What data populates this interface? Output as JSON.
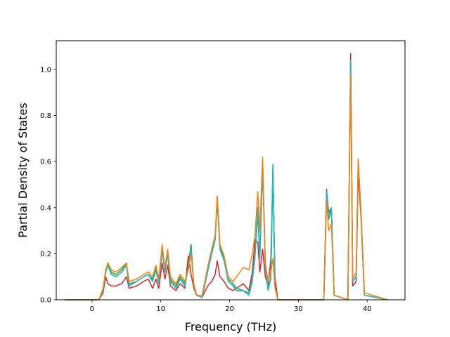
{
  "chart_data": {
    "type": "line",
    "title": "",
    "xlabel": "Frequency (THz)",
    "ylabel": "Partial Density of States",
    "xlim": [
      -5.2,
      45.5
    ],
    "ylim": [
      0,
      1.125
    ],
    "xticks": [
      0,
      10,
      20,
      30,
      40
    ],
    "yticks": [
      0.0,
      0.2,
      0.4,
      0.6,
      0.8,
      1.0
    ],
    "xtick_labels": [
      "0",
      "10",
      "20",
      "30",
      "40"
    ],
    "ytick_labels": [
      "0.0",
      "0.2",
      "0.4",
      "0.6",
      "0.8",
      "1.0"
    ],
    "grid": false,
    "legend": "none",
    "series": [
      {
        "color": "#1f77b4",
        "points": [
          [
            -4,
            0
          ],
          [
            1,
            0
          ],
          [
            1.6,
            0.04
          ],
          [
            2,
            0.12
          ],
          [
            2.3,
            0.16
          ],
          [
            2.8,
            0.11
          ],
          [
            3.5,
            0.1
          ],
          [
            4.3,
            0.12
          ],
          [
            5,
            0.15
          ],
          [
            5.4,
            0.06
          ],
          [
            6.5,
            0.08
          ],
          [
            7.5,
            0.1
          ],
          [
            8.2,
            0.11
          ],
          [
            8.8,
            0.08
          ],
          [
            9.3,
            0.13
          ],
          [
            9.7,
            0.07
          ],
          [
            10.2,
            0.22
          ],
          [
            10.6,
            0.12
          ],
          [
            11,
            0.2
          ],
          [
            11.4,
            0.08
          ],
          [
            12.2,
            0.05
          ],
          [
            12.8,
            0.09
          ],
          [
            13.5,
            0.06
          ],
          [
            14,
            0.15
          ],
          [
            14.4,
            0.24
          ],
          [
            14.8,
            0.06
          ],
          [
            15.2,
            0.02
          ],
          [
            16,
            0.01
          ],
          [
            16.8,
            0.12
          ],
          [
            17.4,
            0.2
          ],
          [
            17.9,
            0.26
          ],
          [
            18.2,
            0.44
          ],
          [
            18.6,
            0.22
          ],
          [
            19.2,
            0.17
          ],
          [
            19.8,
            0.08
          ],
          [
            20.5,
            0.06
          ],
          [
            21,
            0.04
          ],
          [
            22,
            0.04
          ],
          [
            22.8,
            0.02
          ],
          [
            23.3,
            0.08
          ],
          [
            23.7,
            0.19
          ],
          [
            24.1,
            0.38
          ],
          [
            24.4,
            0.18
          ],
          [
            24.8,
            0.58
          ],
          [
            25.2,
            0.14
          ],
          [
            25.6,
            0.04
          ],
          [
            26,
            0.1
          ],
          [
            26.3,
            0.58
          ],
          [
            26.6,
            0.06
          ],
          [
            27,
            0
          ],
          [
            33.7,
            0
          ],
          [
            34.1,
            0.47
          ],
          [
            34.4,
            0.36
          ],
          [
            34.8,
            0.4
          ],
          [
            35.2,
            0.02
          ],
          [
            37.2,
            0
          ],
          [
            37.6,
            1.06
          ],
          [
            37.9,
            0.08
          ],
          [
            38.4,
            0.1
          ],
          [
            38.7,
            0.6
          ],
          [
            39.1,
            0.38
          ],
          [
            39.6,
            0.02
          ],
          [
            43,
            0
          ]
        ]
      },
      {
        "color": "#d62728",
        "points": [
          [
            -4,
            0
          ],
          [
            1,
            0
          ],
          [
            1.6,
            0.03
          ],
          [
            2,
            0.1
          ],
          [
            2.3,
            0.07
          ],
          [
            2.8,
            0.06
          ],
          [
            3.5,
            0.06
          ],
          [
            4.3,
            0.07
          ],
          [
            5,
            0.1
          ],
          [
            5.4,
            0.05
          ],
          [
            6.5,
            0.06
          ],
          [
            7.5,
            0.08
          ],
          [
            8.2,
            0.09
          ],
          [
            8.8,
            0.05
          ],
          [
            9.3,
            0.09
          ],
          [
            9.7,
            0.05
          ],
          [
            10.2,
            0.16
          ],
          [
            10.6,
            0.09
          ],
          [
            11,
            0.15
          ],
          [
            11.4,
            0.06
          ],
          [
            12.2,
            0.04
          ],
          [
            12.8,
            0.07
          ],
          [
            13.5,
            0.05
          ],
          [
            14,
            0.19
          ],
          [
            14.4,
            0.11
          ],
          [
            14.8,
            0.05
          ],
          [
            15.2,
            0.02
          ],
          [
            16,
            0.01
          ],
          [
            16.8,
            0.06
          ],
          [
            17.4,
            0.08
          ],
          [
            17.9,
            0.11
          ],
          [
            18.2,
            0.17
          ],
          [
            18.6,
            0.1
          ],
          [
            19.2,
            0.08
          ],
          [
            19.8,
            0.05
          ],
          [
            20.5,
            0.04
          ],
          [
            21,
            0.05
          ],
          [
            22,
            0.07
          ],
          [
            22.8,
            0.04
          ],
          [
            23.3,
            0.12
          ],
          [
            23.7,
            0.26
          ],
          [
            24.1,
            0.25
          ],
          [
            24.4,
            0.12
          ],
          [
            24.8,
            0.22
          ],
          [
            25.2,
            0.1
          ],
          [
            25.6,
            0.06
          ],
          [
            26,
            0.18
          ],
          [
            26.3,
            0.56
          ],
          [
            26.6,
            0.1
          ],
          [
            27,
            0
          ],
          [
            33.7,
            0
          ],
          [
            34.1,
            0.48
          ],
          [
            34.4,
            0.38
          ],
          [
            34.8,
            0.4
          ],
          [
            35.2,
            0.02
          ],
          [
            37.2,
            0
          ],
          [
            37.6,
            1.07
          ],
          [
            37.9,
            0.06
          ],
          [
            38.4,
            0.08
          ],
          [
            38.7,
            0.55
          ],
          [
            39.1,
            0.36
          ],
          [
            39.6,
            0.02
          ],
          [
            43,
            0
          ]
        ]
      },
      {
        "color": "#2ca02c",
        "points": [
          [
            -4,
            0
          ],
          [
            1,
            0
          ],
          [
            1.6,
            0.04
          ],
          [
            2,
            0.13
          ],
          [
            2.3,
            0.16
          ],
          [
            2.8,
            0.12
          ],
          [
            3.5,
            0.11
          ],
          [
            4.3,
            0.13
          ],
          [
            5,
            0.16
          ],
          [
            5.4,
            0.07
          ],
          [
            6.5,
            0.08
          ],
          [
            7.5,
            0.1
          ],
          [
            8.2,
            0.11
          ],
          [
            8.8,
            0.09
          ],
          [
            9.3,
            0.14
          ],
          [
            9.7,
            0.08
          ],
          [
            10.2,
            0.23
          ],
          [
            10.6,
            0.13
          ],
          [
            11,
            0.21
          ],
          [
            11.4,
            0.09
          ],
          [
            12.2,
            0.06
          ],
          [
            12.8,
            0.1
          ],
          [
            13.5,
            0.07
          ],
          [
            14,
            0.15
          ],
          [
            14.4,
            0.23
          ],
          [
            14.8,
            0.06
          ],
          [
            15.2,
            0.02
          ],
          [
            16,
            0.01
          ],
          [
            16.8,
            0.13
          ],
          [
            17.4,
            0.21
          ],
          [
            17.9,
            0.27
          ],
          [
            18.2,
            0.45
          ],
          [
            18.6,
            0.23
          ],
          [
            19.2,
            0.18
          ],
          [
            19.8,
            0.09
          ],
          [
            20.5,
            0.07
          ],
          [
            21,
            0.05
          ],
          [
            22,
            0.04
          ],
          [
            22.8,
            0.03
          ],
          [
            23.3,
            0.09
          ],
          [
            23.7,
            0.2
          ],
          [
            24.1,
            0.4
          ],
          [
            24.4,
            0.19
          ],
          [
            24.8,
            0.6
          ],
          [
            25.2,
            0.15
          ],
          [
            25.6,
            0.05
          ],
          [
            26,
            0.09
          ],
          [
            26.3,
            0.57
          ],
          [
            26.6,
            0.06
          ],
          [
            27,
            0
          ],
          [
            33.7,
            0
          ],
          [
            34.1,
            0.46
          ],
          [
            34.4,
            0.35
          ],
          [
            34.8,
            0.39
          ],
          [
            35.2,
            0.02
          ],
          [
            37.2,
            0
          ],
          [
            37.6,
            1.03
          ],
          [
            37.9,
            0.08
          ],
          [
            38.4,
            0.1
          ],
          [
            38.7,
            0.61
          ],
          [
            39.1,
            0.37
          ],
          [
            39.6,
            0.02
          ],
          [
            43,
            0
          ]
        ]
      },
      {
        "color": "#17becf",
        "points": [
          [
            -4,
            0
          ],
          [
            1,
            0
          ],
          [
            1.6,
            0.04
          ],
          [
            2,
            0.12
          ],
          [
            2.3,
            0.15
          ],
          [
            2.8,
            0.11
          ],
          [
            3.5,
            0.1
          ],
          [
            4.3,
            0.12
          ],
          [
            5,
            0.15
          ],
          [
            5.4,
            0.06
          ],
          [
            6.5,
            0.08
          ],
          [
            7.5,
            0.1
          ],
          [
            8.2,
            0.11
          ],
          [
            8.8,
            0.08
          ],
          [
            9.3,
            0.13
          ],
          [
            9.7,
            0.07
          ],
          [
            10.2,
            0.21
          ],
          [
            10.6,
            0.12
          ],
          [
            11,
            0.2
          ],
          [
            11.4,
            0.08
          ],
          [
            12.2,
            0.05
          ],
          [
            12.8,
            0.09
          ],
          [
            13.5,
            0.06
          ],
          [
            14,
            0.14
          ],
          [
            14.4,
            0.22
          ],
          [
            14.8,
            0.06
          ],
          [
            15.2,
            0.02
          ],
          [
            16,
            0.01
          ],
          [
            16.8,
            0.12
          ],
          [
            17.4,
            0.2
          ],
          [
            17.9,
            0.26
          ],
          [
            18.2,
            0.43
          ],
          [
            18.6,
            0.22
          ],
          [
            19.2,
            0.17
          ],
          [
            19.8,
            0.08
          ],
          [
            20.5,
            0.06
          ],
          [
            21,
            0.04
          ],
          [
            22,
            0.04
          ],
          [
            22.8,
            0.02
          ],
          [
            23.3,
            0.08
          ],
          [
            23.7,
            0.19
          ],
          [
            24.1,
            0.39
          ],
          [
            24.4,
            0.18
          ],
          [
            24.8,
            0.59
          ],
          [
            25.2,
            0.14
          ],
          [
            25.6,
            0.04
          ],
          [
            26,
            0.1
          ],
          [
            26.3,
            0.59
          ],
          [
            26.6,
            0.06
          ],
          [
            27,
            0
          ],
          [
            33.7,
            0
          ],
          [
            34.1,
            0.47
          ],
          [
            34.4,
            0.36
          ],
          [
            34.8,
            0.4
          ],
          [
            35.2,
            0.02
          ],
          [
            37.2,
            0
          ],
          [
            37.6,
            1.04
          ],
          [
            37.9,
            0.08
          ],
          [
            38.4,
            0.1
          ],
          [
            38.7,
            0.6
          ],
          [
            39.1,
            0.38
          ],
          [
            39.6,
            0.02
          ],
          [
            43,
            0
          ]
        ]
      },
      {
        "color": "#ff7f0e",
        "points": [
          [
            -4,
            0
          ],
          [
            1,
            0
          ],
          [
            1.6,
            0.05
          ],
          [
            2,
            0.13
          ],
          [
            2.3,
            0.16
          ],
          [
            2.8,
            0.13
          ],
          [
            3.5,
            0.12
          ],
          [
            4.3,
            0.14
          ],
          [
            5,
            0.16
          ],
          [
            5.4,
            0.08
          ],
          [
            6.5,
            0.09
          ],
          [
            7.5,
            0.11
          ],
          [
            8.2,
            0.12
          ],
          [
            8.8,
            0.1
          ],
          [
            9.3,
            0.15
          ],
          [
            9.7,
            0.09
          ],
          [
            10.2,
            0.24
          ],
          [
            10.6,
            0.14
          ],
          [
            11,
            0.22
          ],
          [
            11.4,
            0.1
          ],
          [
            12.2,
            0.07
          ],
          [
            12.8,
            0.11
          ],
          [
            13.5,
            0.08
          ],
          [
            14,
            0.13
          ],
          [
            14.4,
            0.2
          ],
          [
            14.8,
            0.07
          ],
          [
            15.2,
            0.02
          ],
          [
            16,
            0.02
          ],
          [
            16.8,
            0.14
          ],
          [
            17.4,
            0.22
          ],
          [
            17.9,
            0.28
          ],
          [
            18.2,
            0.45
          ],
          [
            18.6,
            0.24
          ],
          [
            19.2,
            0.19
          ],
          [
            19.8,
            0.1
          ],
          [
            20.5,
            0.08
          ],
          [
            21,
            0.1
          ],
          [
            22,
            0.14
          ],
          [
            22.8,
            0.13
          ],
          [
            23.3,
            0.2
          ],
          [
            23.7,
            0.28
          ],
          [
            24.1,
            0.47
          ],
          [
            24.4,
            0.3
          ],
          [
            24.8,
            0.62
          ],
          [
            25.2,
            0.16
          ],
          [
            25.6,
            0.08
          ],
          [
            26,
            0.12
          ],
          [
            26.3,
            0.18
          ],
          [
            26.6,
            0.05
          ],
          [
            27,
            0
          ],
          [
            33.7,
            0
          ],
          [
            34.1,
            0.43
          ],
          [
            34.4,
            0.3
          ],
          [
            34.8,
            0.33
          ],
          [
            35.2,
            0.02
          ],
          [
            37.2,
            0
          ],
          [
            37.6,
            0.98
          ],
          [
            37.9,
            0.09
          ],
          [
            38.4,
            0.12
          ],
          [
            38.7,
            0.61
          ],
          [
            39.1,
            0.39
          ],
          [
            39.6,
            0.03
          ],
          [
            43,
            0
          ]
        ]
      }
    ]
  }
}
